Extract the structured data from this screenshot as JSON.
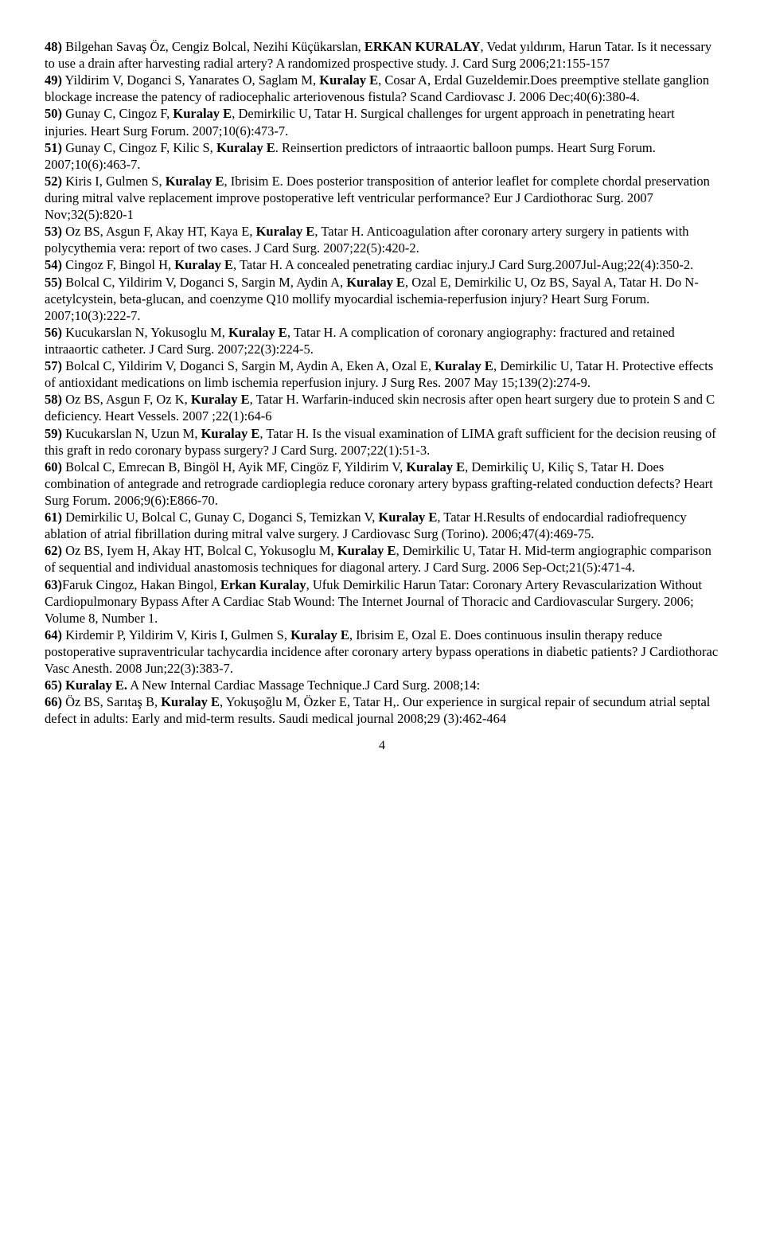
{
  "refs": [
    {
      "n": "48)",
      "text": " Bilgehan Savaş Öz, Cengiz Bolcal, Nezihi Küçükarslan, ",
      "bold1": "ERKAN KURALAY",
      "after1": ", Vedat yıldırım, Harun Tatar. Is it necessary to use a drain after harvesting radial artery? A randomized prospective study. J. Card Surg 2006;21:155-157"
    },
    {
      "n": "49)",
      "text": " Yildirim V, Doganci S, Yanarates O, Saglam M, ",
      "bold1": "Kuralay E",
      "after1": ", Cosar A, Erdal Guzeldemir.Does preemptive stellate ganglion blockage increase the patency of radiocephalic arteriovenous fistula? Scand Cardiovasc J. 2006 Dec;40(6):380-4."
    },
    {
      "n": "50)",
      "text": " Gunay C, Cingoz F, ",
      "bold1": "Kuralay E",
      "after1": ", Demirkilic U, Tatar H. Surgical challenges for urgent approach in penetrating heart injuries. Heart Surg Forum. 2007;10(6):473-7."
    },
    {
      "n": "51)",
      "text": " Gunay C, Cingoz F, Kilic S, ",
      "bold1": "Kuralay E",
      "after1": ". Reinsertion predictors of intraaortic balloon pumps. Heart Surg Forum. 2007;10(6):463-7."
    },
    {
      "n": "52)",
      "text": " Kiris I, Gulmen S, ",
      "bold1": "Kuralay E",
      "after1": ", Ibrisim E. Does posterior transposition of anterior leaflet for complete chordal preservation during mitral valve replacement improve postoperative left ventricular performance? Eur J Cardiothorac Surg. 2007 Nov;32(5):820-1"
    },
    {
      "n": "53)",
      "text": " Oz BS, Asgun F, Akay HT, Kaya E, ",
      "bold1": "Kuralay E",
      "after1": ", Tatar H. Anticoagulation after coronary artery surgery in patients with polycythemia vera: report of two cases. J Card Surg. 2007;22(5):420-2."
    },
    {
      "n": "54)",
      "text": " Cingoz F, Bingol H, ",
      "bold1": "Kuralay E",
      "after1": ", Tatar H. A concealed penetrating cardiac injury.J Card Surg.2007Jul-Aug;22(4):350-2."
    },
    {
      "n": "55)",
      "text": " Bolcal C, Yildirim V, Doganci S, Sargin M, Aydin A, ",
      "bold1": "Kuralay E",
      "after1": ", Ozal E, Demirkilic U, Oz BS, Sayal A, Tatar H. Do N-acetylcystein, beta-glucan, and coenzyme Q10 mollify myocardial ischemia-reperfusion injury? Heart Surg Forum. 2007;10(3):222-7."
    },
    {
      "n": "56)",
      "text": " Kucukarslan N, Yokusoglu M, ",
      "bold1": "Kuralay E",
      "after1": ", Tatar H. A complication of coronary angiography: fractured and retained intraaortic catheter. J Card Surg. 2007;22(3):224-5."
    },
    {
      "n": "57)",
      "text": " Bolcal C, Yildirim V, Doganci S, Sargin M, Aydin A, Eken A, Ozal E, ",
      "bold1": "Kuralay E",
      "after1": ", Demirkilic U, Tatar H. Protective effects of antioxidant medications on limb ischemia reperfusion injury. J Surg Res. 2007 May 15;139(2):274-9."
    },
    {
      "n": "58)",
      "text": " Oz BS, Asgun F, Oz K, ",
      "bold1": "Kuralay E",
      "after1": ", Tatar H. Warfarin-induced skin necrosis after open heart surgery due to protein S and C deficiency. Heart Vessels. 2007 ;22(1):64-6"
    },
    {
      "n": "59)",
      "text": " Kucukarslan N, Uzun M, ",
      "bold1": "Kuralay E",
      "after1": ", Tatar H. Is the visual examination of LIMA graft sufficient for the decision reusing of this graft in redo coronary bypass surgery? J Card Surg. 2007;22(1):51-3."
    },
    {
      "n": "60)",
      "text": " Bolcal C, Emrecan B, Bingöl H, Ayik MF, Cingöz F, Yildirim V, ",
      "bold1": "Kuralay E",
      "after1": ", Demirkiliç U, Kiliç S, Tatar H. Does combination of antegrade and retrograde cardioplegia reduce coronary artery bypass grafting-related conduction defects? Heart Surg Forum. 2006;9(6):E866-70."
    },
    {
      "n": "61)",
      "text": " Demirkilic U, Bolcal C, Gunay C, Doganci S, Temizkan V, ",
      "bold1": "Kuralay E",
      "after1": ", Tatar H.Results of endocardial radiofrequency ablation of atrial fibrillation during mitral valve surgery. J Cardiovasc Surg (Torino). 2006;47(4):469-75."
    },
    {
      "n": "62)",
      "text": " Oz BS, Iyem H, Akay HT, Bolcal C, Yokusoglu M, ",
      "bold1": "Kuralay E",
      "after1": ", Demirkilic U, Tatar H. Mid-term angiographic comparison of sequential and individual anastomosis techniques for diagonal artery. J Card Surg. 2006 Sep-Oct;21(5):471-4."
    },
    {
      "n": "63)",
      "text": "Faruk Cingoz, Hakan Bingol, ",
      "bold1": "Erkan Kuralay",
      "after1": ", Ufuk Demirkilic Harun Tatar: Coronary Artery Revascularization Without Cardiopulmonary Bypass After A Cardiac Stab Wound:  The Internet Journal of Thoracic and Cardiovascular Surgery. 2006; Volume 8, Number 1."
    },
    {
      "n": "64)",
      "text": " Kirdemir P, Yildirim V, Kiris I, Gulmen S, ",
      "bold1": "Kuralay E",
      "after1": ", Ibrisim E, Ozal E. Does continuous insulin therapy reduce postoperative supraventricular tachycardia incidence after coronary artery bypass operations in diabetic patients? J Cardiothorac Vasc Anesth. 2008 Jun;22(3):383-7."
    },
    {
      "n": "65)",
      "text": " ",
      "bold1": "Kuralay E.",
      "after1": " A New Internal Cardiac Massage Technique.J Card Surg. 2008;14:"
    },
    {
      "n": "66)",
      "text": " Öz BS, Sarıtaş B, ",
      "bold1": "Kuralay E",
      "after1": ", Yokuşoğlu M, Özker E, Tatar H,. Our experience in surgical repair of secundum atrial septal defect in adults: Early and mid-term results. Saudi medical journal 2008;29 (3):462-464"
    }
  ],
  "page_number": "4"
}
